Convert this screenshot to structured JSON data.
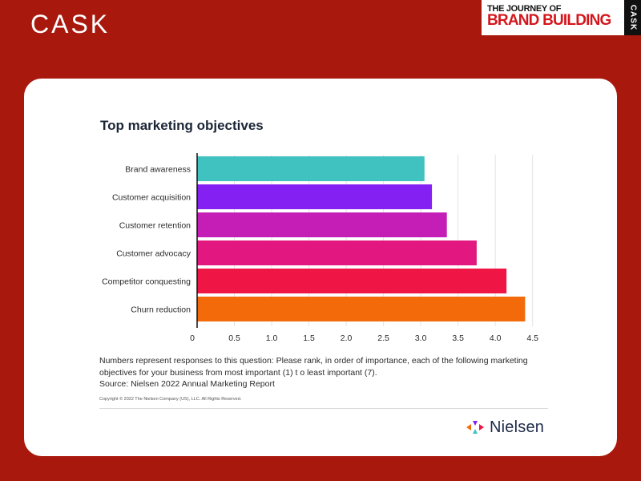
{
  "header": {
    "logo_text": "CASK",
    "badge_line1": "THE JOURNEY OF",
    "badge_line2": "BRAND BUILDING",
    "badge_side_text": "CASK"
  },
  "card": {
    "note": "Numbers represent responses to this question: Please rank, in order of importance, each of the following marketing objectives for your business from most important (1) t o least important (7).",
    "source": "Source: Nielsen 2022 Annual Marketing Report",
    "copyright": "Copyright © 2022 The Nielsen Company (US), LLC. All Rights Reserved.",
    "brand_name": "Nielsen"
  },
  "colors": {
    "background": "#a8180d",
    "badge_red": "#d4161c"
  },
  "chart_data": {
    "type": "bar",
    "orientation": "horizontal",
    "title": "Top marketing objectives",
    "xlabel": "",
    "ylabel": "",
    "categories": [
      "Brand awareness",
      "Customer acquisition",
      "Customer retention",
      "Customer advocacy",
      "Competitor conquesting",
      "Churn reduction"
    ],
    "values": [
      3.05,
      3.15,
      3.35,
      3.75,
      4.15,
      4.4
    ],
    "bar_colors": [
      "#40c2c0",
      "#8421f2",
      "#c51eb7",
      "#e2177f",
      "#ef1646",
      "#f36a0a"
    ],
    "xlim": [
      0,
      4.6
    ],
    "xticks": [
      0,
      0.5,
      1.0,
      1.5,
      2.0,
      2.5,
      3.0,
      3.5,
      4.0,
      4.5
    ],
    "xtick_labels": [
      "0",
      "0.5",
      "1.0",
      "1.5",
      "2.0",
      "2.5",
      "3.0",
      "3.5",
      "4.0",
      "4.5"
    ],
    "grid": true
  }
}
